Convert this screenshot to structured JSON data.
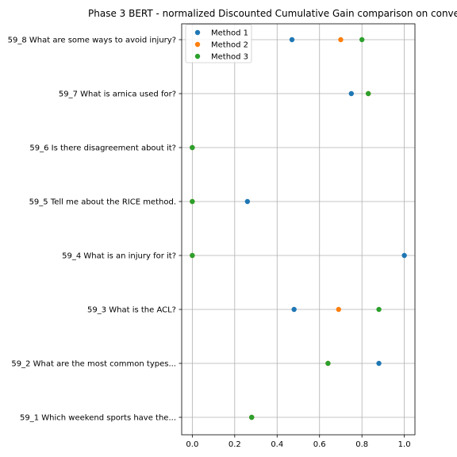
{
  "chart_data": {
    "type": "scatter",
    "title": "Phase 3 BERT - normalized Discounted Cumulative Gain comparison on conve",
    "xlabel": "",
    "ylabel": "",
    "xlim": [
      -0.05,
      1.05
    ],
    "xticks": [
      0.0,
      0.2,
      0.4,
      0.6,
      0.8,
      1.0
    ],
    "xtick_labels": [
      "0.0",
      "0.2",
      "0.4",
      "0.6",
      "0.8",
      "1.0"
    ],
    "categories": [
      "59_1 Which weekend sports have the...",
      "59_2 What are the most common types...",
      "59_3 What is the ACL?",
      "59_4 What is an injury for it?",
      "59_5 Tell me about the RICE method.",
      "59_6 Is there disagreement about it?",
      "59_7 What is arnica used for?",
      "59_8 What are some ways to avoid injury?"
    ],
    "grid": true,
    "legend_position": "top-left",
    "series": [
      {
        "name": "Method 1",
        "color": "#1f77b4",
        "values": [
          0.28,
          0.88,
          0.48,
          1.0,
          0.26,
          0.0,
          0.75,
          0.47
        ]
      },
      {
        "name": "Method 2",
        "color": "#ff7f0e",
        "values": [
          0.28,
          0.64,
          0.69,
          0.0,
          0.0,
          0.0,
          0.83,
          0.7
        ]
      },
      {
        "name": "Method 3",
        "color": "#2ca02c",
        "values": [
          0.28,
          0.64,
          0.88,
          0.0,
          0.0,
          0.0,
          0.83,
          0.8
        ]
      }
    ]
  }
}
